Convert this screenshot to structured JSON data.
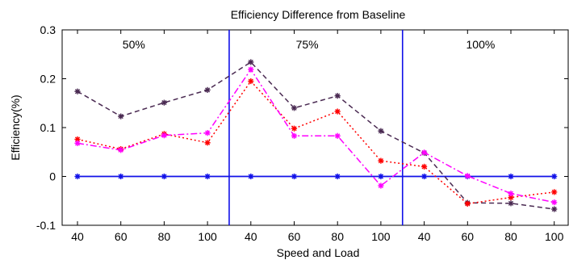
{
  "chart_data": {
    "type": "line",
    "title": "Efficiency Difference from Baseline",
    "xlabel": "Speed and Load",
    "ylabel": "Efficiency(%)",
    "categories": [
      "40",
      "60",
      "80",
      "100",
      "40",
      "60",
      "80",
      "100",
      "40",
      "60",
      "80",
      "100"
    ],
    "ylim": [
      -0.1,
      0.3
    ],
    "yticks": [
      "-0.1",
      "0",
      "0.1",
      "0.2",
      "0.3"
    ],
    "yticks_values": [
      -0.1,
      0,
      0.1,
      0.2,
      0.3
    ],
    "group_labels": [
      "50%",
      "75%",
      "100%"
    ],
    "grid": false,
    "series": [
      {
        "values": [
          0,
          0,
          0,
          0,
          0,
          0,
          0,
          0,
          0,
          0,
          0,
          0
        ],
        "color": "#1010e8",
        "line_style": "solid",
        "marker": "asterisk"
      },
      {
        "values": [
          0.174,
          0.123,
          0.151,
          0.177,
          0.234,
          0.14,
          0.165,
          0.093,
          0.048,
          -0.054,
          -0.055,
          -0.067
        ],
        "color": "#4a2a52",
        "line_style": "dashed",
        "marker": "asterisk"
      },
      {
        "values": [
          0.076,
          0.056,
          0.087,
          0.069,
          0.195,
          0.098,
          0.133,
          0.032,
          0.02,
          -0.056,
          -0.043,
          -0.032
        ],
        "color": "#ff0000",
        "line_style": "dotted",
        "marker": "asterisk"
      },
      {
        "values": [
          0.068,
          0.054,
          0.084,
          0.089,
          0.219,
          0.083,
          0.083,
          -0.019,
          0.049,
          0.001,
          -0.035,
          -0.053
        ],
        "color": "#ff00ff",
        "line_style": "dashdot",
        "marker": "asterisk"
      }
    ]
  }
}
